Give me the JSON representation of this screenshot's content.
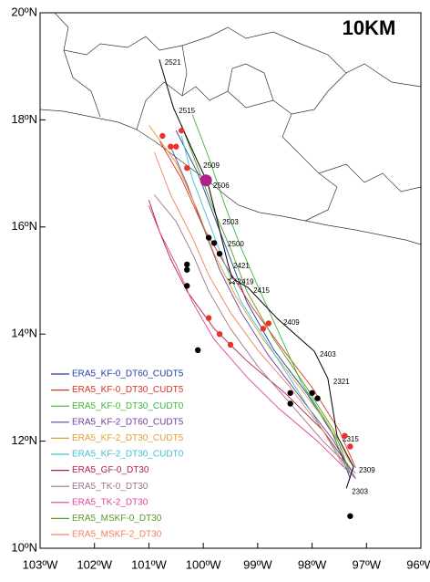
{
  "map": {
    "title": "10KM",
    "xlim": [
      -103,
      -96
    ],
    "ylim": [
      10,
      20
    ],
    "xticks": [
      {
        "value": -103,
        "label": "103ºW"
      },
      {
        "value": -102,
        "label": "102ºW"
      },
      {
        "value": -101,
        "label": "101ºW"
      },
      {
        "value": -100,
        "label": "100ºW"
      },
      {
        "value": -99,
        "label": "99ºW"
      },
      {
        "value": -98,
        "label": "98ºW"
      },
      {
        "value": -97,
        "label": "97ºW"
      },
      {
        "value": -96,
        "label": "96ºW"
      }
    ],
    "yticks": [
      {
        "value": 10,
        "label": "10ºN"
      },
      {
        "value": 12,
        "label": "12ºN"
      },
      {
        "value": 14,
        "label": "14ºN"
      },
      {
        "value": 16,
        "label": "16ºN"
      },
      {
        "value": 18,
        "label": "18ºN"
      },
      {
        "value": 20,
        "label": "20ºN"
      }
    ],
    "best_track": {
      "color": "#000000",
      "lon": [
        -100.81,
        -100.55,
        -100.1,
        -99.92,
        -99.75,
        -99.65,
        -99.55,
        -99.47,
        -99.18,
        -98.63,
        -97.96,
        -97.71,
        -97.54,
        -97.24,
        -97.37
      ],
      "lat": [
        19.13,
        18.23,
        17.21,
        16.83,
        16.15,
        15.74,
        15.33,
        15.04,
        14.87,
        14.28,
        13.68,
        13.17,
        12.1,
        11.52,
        11.12
      ],
      "labels": [
        "2521",
        "2515",
        "2509",
        "2506",
        "2503",
        "2500",
        "2421",
        "2419",
        "2415",
        "2409",
        "2403",
        "2321",
        "2315",
        "2309",
        "2303"
      ]
    },
    "series": [
      {
        "name": "ERA5_KF-0_DT60_CUDT5",
        "color": "#1f3f9f",
        "lon": [
          -97.3,
          -97.6,
          -98.1,
          -98.7,
          -99.2,
          -99.5,
          -99.8,
          -100.1,
          -100.5
        ],
        "lat": [
          11.3,
          12.1,
          12.9,
          13.7,
          14.6,
          15.4,
          16.2,
          17.0,
          17.8
        ]
      },
      {
        "name": "ERA5_KF-0_DT30_CUDT5",
        "color": "#e0301e",
        "lon": [
          -97.2,
          -97.5,
          -98.0,
          -98.6,
          -99.1,
          -99.6,
          -100.0,
          -100.4,
          -100.8
        ],
        "lat": [
          11.5,
          12.2,
          13.0,
          13.8,
          14.5,
          15.3,
          16.0,
          16.9,
          17.6
        ]
      },
      {
        "name": "ERA5_KF-0_DT30_CUDT0",
        "color": "#3cb83c",
        "lon": [
          -97.3,
          -97.7,
          -98.2,
          -98.6,
          -99.0,
          -99.3,
          -99.6,
          -99.9,
          -100.2
        ],
        "lat": [
          11.4,
          12.3,
          13.1,
          14.0,
          14.9,
          15.6,
          16.4,
          17.3,
          18.1
        ]
      },
      {
        "name": "ERA5_KF-2_DT60_CUDT5",
        "color": "#6a3d9a",
        "lon": [
          -97.2,
          -97.6,
          -98.2,
          -98.8,
          -99.3,
          -99.7,
          -100.0,
          -100.3,
          -100.6
        ],
        "lat": [
          11.3,
          12.0,
          12.8,
          13.6,
          14.4,
          15.2,
          16.0,
          16.8,
          17.5
        ]
      },
      {
        "name": "ERA5_KF-2_DT30_CUDT5",
        "color": "#e0a030",
        "lon": [
          -97.3,
          -97.7,
          -98.3,
          -98.9,
          -99.4,
          -99.8,
          -100.1,
          -100.5,
          -101.0
        ],
        "lat": [
          11.6,
          12.3,
          13.1,
          13.9,
          14.7,
          15.5,
          16.3,
          17.2,
          17.9
        ]
      },
      {
        "name": "ERA5_KF-2_DT30_CUDT0",
        "color": "#40c0d0",
        "lon": [
          -97.3,
          -97.8,
          -98.3,
          -98.8,
          -99.3,
          -99.6,
          -99.9,
          -100.2,
          -100.4
        ],
        "lat": [
          11.4,
          12.2,
          13.0,
          13.8,
          14.6,
          15.3,
          16.1,
          16.9,
          17.7
        ]
      },
      {
        "name": "ERA5_GF-0_DT30",
        "color": "#b02040",
        "lon": [
          -97.3,
          -97.8,
          -98.5,
          -99.2,
          -99.8,
          -100.3,
          -100.6,
          -100.8,
          -101.0
        ],
        "lat": [
          11.5,
          12.2,
          12.9,
          13.5,
          14.1,
          14.8,
          15.4,
          15.9,
          16.5
        ]
      },
      {
        "name": "ERA5_TK-0_DT30",
        "color": "#a07090",
        "lon": [
          -97.2,
          -97.8,
          -98.4,
          -99.0,
          -99.5,
          -99.9,
          -100.2,
          -100.5,
          -100.9
        ],
        "lat": [
          11.4,
          12.0,
          12.7,
          13.4,
          14.1,
          14.8,
          15.5,
          16.1,
          16.6
        ]
      },
      {
        "name": "ERA5_TK-2_DT30",
        "color": "#e040a0",
        "lon": [
          -97.2,
          -97.9,
          -98.6,
          -99.2,
          -99.8,
          -100.2,
          -100.5,
          -100.8,
          -101.0
        ],
        "lat": [
          11.3,
          12.0,
          12.6,
          13.2,
          13.9,
          14.6,
          15.3,
          15.9,
          16.4
        ]
      },
      {
        "name": "ERA5_MSKF-0_DT30",
        "color": "#5a9a20",
        "lon": [
          -97.3,
          -97.6,
          -98.1,
          -98.7,
          -99.2,
          -99.5,
          -99.8,
          -100.1,
          -100.4
        ],
        "lat": [
          11.4,
          12.2,
          13.0,
          13.9,
          14.8,
          15.6,
          16.3,
          17.1,
          17.9
        ]
      },
      {
        "name": "ERA5_MSKF-2_DT30",
        "color": "#f08060",
        "lon": [
          -97.4,
          -97.8,
          -98.4,
          -99.0,
          -99.5,
          -99.9,
          -100.2,
          -100.6,
          -100.9
        ],
        "lat": [
          11.5,
          12.2,
          13.0,
          13.7,
          14.4,
          15.1,
          15.8,
          16.6,
          17.4
        ]
      }
    ],
    "dots": [
      {
        "color": "#e8322a",
        "lon": [
          -100.75,
          -100.6,
          -100.5,
          -100.3,
          -100.4,
          -99.9,
          -99.7,
          -99.5,
          -98.9,
          -98.8,
          -97.4,
          -97.3
        ],
        "lat": [
          17.7,
          17.5,
          17.5,
          17.1,
          17.8,
          14.3,
          14.0,
          13.8,
          14.1,
          14.2,
          12.1,
          11.9
        ]
      },
      {
        "color": "#000000",
        "lon": [
          -99.9,
          -99.8,
          -99.7,
          -100.3,
          -100.3,
          -100.3,
          -98.4,
          -98.4,
          -98.0,
          -97.9,
          -100.1,
          -97.3
        ],
        "lat": [
          15.8,
          15.7,
          15.5,
          15.3,
          15.2,
          14.9,
          12.9,
          12.7,
          12.9,
          12.8,
          13.7,
          10.6
        ]
      }
    ],
    "landfall_marker": {
      "color": "#b0208a",
      "lon": -99.95,
      "lat": 16.87
    },
    "star_marker": {
      "lon": -99.47,
      "lat": 15.0
    }
  }
}
